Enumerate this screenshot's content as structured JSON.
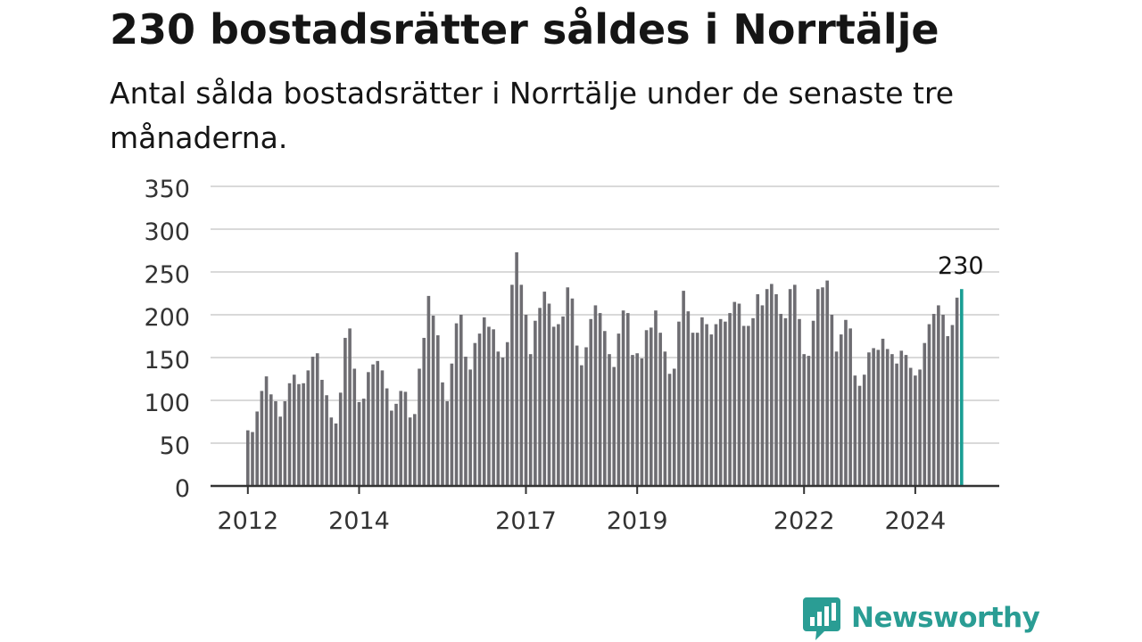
{
  "header": {
    "title": "230 bostadsrätter såldes i Norrtälje",
    "subtitle": "Antal sålda bostadsrätter i Norrtälje under de senaste tre månaderna."
  },
  "brand": {
    "logo_text": "Newsworthy",
    "logo_color": "#2a9d94"
  },
  "colors": {
    "bar": "#6e6d72",
    "highlight": "#1a9e94",
    "grid": "#d9d9d9",
    "axis": "#333333"
  },
  "chart_data": {
    "type": "bar",
    "xlabel": "",
    "ylabel": "",
    "ylim": [
      0,
      350
    ],
    "yticks": [
      0,
      50,
      100,
      150,
      200,
      250,
      300,
      350
    ],
    "xticks": [
      {
        "label": "2012",
        "index": 0
      },
      {
        "label": "2014",
        "index": 24
      },
      {
        "label": "2017",
        "index": 60
      },
      {
        "label": "2019",
        "index": 84
      },
      {
        "label": "2022",
        "index": 120
      },
      {
        "label": "2024",
        "index": 144
      }
    ],
    "highlight_index": 154,
    "highlight_label": "230",
    "values": [
      65,
      63,
      87,
      111,
      128,
      107,
      99,
      81,
      99,
      120,
      130,
      119,
      120,
      135,
      151,
      155,
      124,
      106,
      80,
      73,
      109,
      173,
      184,
      137,
      98,
      102,
      133,
      142,
      146,
      135,
      114,
      88,
      96,
      111,
      110,
      80,
      84,
      137,
      173,
      222,
      199,
      176,
      121,
      99,
      143,
      190,
      200,
      151,
      136,
      167,
      178,
      197,
      186,
      183,
      157,
      150,
      168,
      235,
      273,
      235,
      200,
      154,
      193,
      208,
      227,
      213,
      186,
      189,
      198,
      232,
      219,
      164,
      141,
      162,
      195,
      211,
      202,
      181,
      154,
      139,
      178,
      205,
      202,
      153,
      155,
      149,
      182,
      185,
      205,
      179,
      157,
      131,
      137,
      192,
      228,
      204,
      179,
      179,
      197,
      189,
      177,
      189,
      195,
      192,
      202,
      215,
      213,
      187,
      187,
      196,
      224,
      211,
      230,
      236,
      224,
      201,
      196,
      230,
      235,
      195,
      154,
      152,
      193,
      230,
      232,
      240,
      200,
      157,
      177,
      194,
      184,
      129,
      117,
      130,
      156,
      161,
      159,
      172,
      160,
      154,
      143,
      158,
      153,
      138,
      129,
      136,
      167,
      189,
      201,
      211,
      200,
      175,
      188,
      220,
      230
    ]
  }
}
